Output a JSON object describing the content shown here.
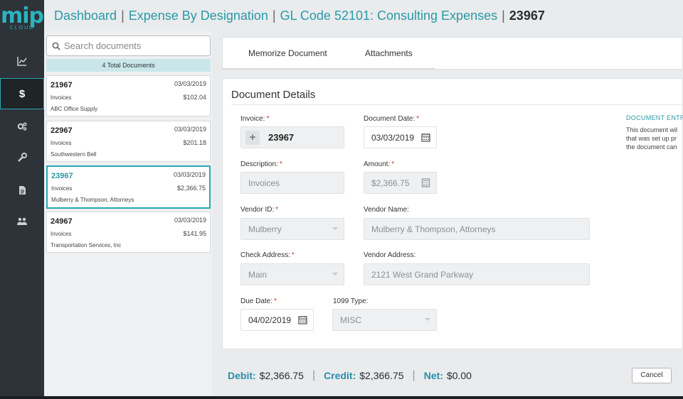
{
  "logo": {
    "main": "mip",
    "sub": "CLOUD"
  },
  "nav": [
    {
      "icon": "line-chart-icon"
    },
    {
      "icon": "dollar-icon",
      "label": "$"
    },
    {
      "icon": "cogs-icon"
    },
    {
      "icon": "wrench-icon"
    },
    {
      "icon": "document-icon"
    },
    {
      "icon": "users-icon"
    }
  ],
  "breadcrumb": {
    "dashboard": "Dashboard",
    "designation": "Expense By Designation",
    "gl_code": "GL Code 52101: Consulting Expenses",
    "current": "23967",
    "separator": "|"
  },
  "search": {
    "placeholder": "Search documents"
  },
  "doc_list": {
    "total": "4 Total Documents",
    "items": [
      {
        "number": "21967",
        "date": "03/03/2019",
        "type": "Invoices",
        "amount": "$102.04",
        "vendor": "ABC Office Supply"
      },
      {
        "number": "22967",
        "date": "03/03/2019",
        "type": "Invoices",
        "amount": "$201.18",
        "vendor": "Southwestern Bell"
      },
      {
        "number": "23967",
        "date": "03/03/2019",
        "type": "Invoices",
        "amount": "$2,366.75",
        "vendor": "Mulberry & Thompson, Attorneys"
      },
      {
        "number": "24967",
        "date": "03/03/2019",
        "type": "Invoices",
        "amount": "$141.95",
        "vendor": "Transportation Services, Inc"
      }
    ]
  },
  "tabs": {
    "memorize": "Memorize Document",
    "attachments": "Attachments"
  },
  "details": {
    "title": "Document Details",
    "invoice_label": "Invoice:",
    "invoice_value": "23967",
    "document_date_label": "Document Date:",
    "document_date_value": "03/03/2019",
    "description_label": "Description:",
    "description_value": "Invoices",
    "amount_label": "Amount:",
    "amount_value": "$2,366.75",
    "vendor_id_label": "Vendor ID:",
    "vendor_id_value": "Mulberry",
    "vendor_name_label": "Vendor Name:",
    "vendor_name_value": "Mulberry & Thompson, Attorneys",
    "check_address_label": "Check Address:",
    "check_address_value": "Main",
    "vendor_address_label": "Vendor Address:",
    "vendor_address_value": "2121 West Grand Parkway",
    "due_date_label": "Due Date:",
    "due_date_value": "04/02/2019",
    "type_1099_label": "1099 Type:",
    "type_1099_value": "MISC",
    "required_marker": "*",
    "entry_title": "DOCUMENT ENTR",
    "entry_line1": "This document wil",
    "entry_line2": "that was set up pr",
    "entry_line3": "the document can"
  },
  "footer": {
    "debit_label": "Debit:",
    "debit_value": "$2,366.75",
    "credit_label": "Credit:",
    "credit_value": "$2,366.75",
    "net_label": "Net:",
    "net_value": "$0.00",
    "cancel": "Cancel"
  },
  "colors": {
    "accent": "#2aa6b1",
    "nav_bg": "#2d3338",
    "required": "#c0392b"
  }
}
